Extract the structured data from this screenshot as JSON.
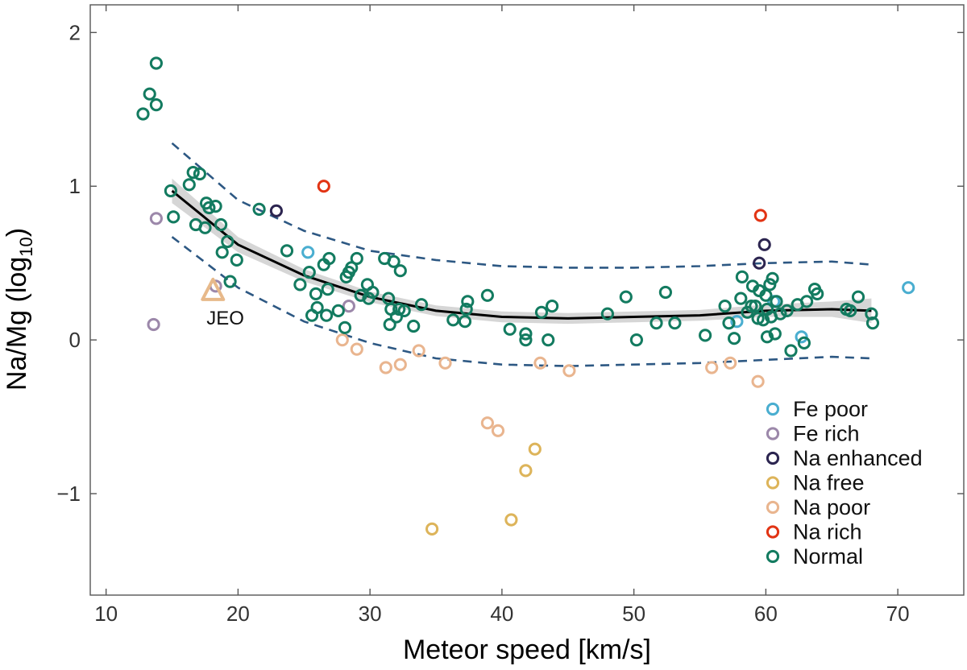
{
  "chart_data": {
    "type": "scatter",
    "title": "",
    "xlabel": "Meteor speed [km/s]",
    "ylabel_main": "Na/Mg (log",
    "ylabel_sub": "10",
    "ylabel_close": ")",
    "xlim": [
      8.8,
      75
    ],
    "ylim": [
      -1.66,
      2.18
    ],
    "xticks": [
      10,
      20,
      30,
      40,
      50,
      60,
      70
    ],
    "yticks": [
      2,
      1,
      0,
      -1
    ],
    "xtick_labels": [
      "10",
      "20",
      "30",
      "40",
      "50",
      "60",
      "70"
    ],
    "ytick_labels": [
      "2",
      "1",
      "0",
      "−1"
    ],
    "grid": false,
    "legend_position": "bottom-right",
    "colors": {
      "Fe poor": "#4aaed0",
      "Fe rich": "#9c88aa",
      "Na enhanced": "#2c2550",
      "Na free": "#ddb45a",
      "Na poor": "#e9b58f",
      "Na rich": "#e23414",
      "Normal": "#137b60",
      "fit": "#000000",
      "band": "#cfcfcf",
      "dashed": "#2d5883",
      "jeo": "#e7b98a",
      "axis": "#555555"
    },
    "legend": [
      "Fe poor",
      "Fe rich",
      "Na enhanced",
      "Na free",
      "Na poor",
      "Na rich",
      "Normal"
    ],
    "series": [
      {
        "name": "Fe poor",
        "points": [
          [
            25.3,
            0.57
          ],
          [
            57.8,
            0.12
          ],
          [
            60.6,
            0.25
          ],
          [
            62.7,
            0.02
          ],
          [
            70.8,
            0.34
          ]
        ]
      },
      {
        "name": "Fe rich",
        "points": [
          [
            13.6,
            0.1
          ],
          [
            13.8,
            0.79
          ],
          [
            18.3,
            0.35
          ],
          [
            28.4,
            0.22
          ]
        ]
      },
      {
        "name": "Na enhanced",
        "points": [
          [
            22.9,
            0.84
          ],
          [
            59.5,
            0.5
          ],
          [
            59.9,
            0.62
          ]
        ]
      },
      {
        "name": "Na free",
        "points": [
          [
            34.7,
            -1.23
          ],
          [
            40.7,
            -1.17
          ],
          [
            41.8,
            -0.85
          ],
          [
            42.5,
            -0.71
          ]
        ]
      },
      {
        "name": "Na poor",
        "points": [
          [
            27.9,
            0.0
          ],
          [
            29.0,
            -0.06
          ],
          [
            31.2,
            -0.18
          ],
          [
            32.3,
            -0.16
          ],
          [
            33.7,
            -0.07
          ],
          [
            35.7,
            -0.15
          ],
          [
            38.9,
            -0.54
          ],
          [
            39.7,
            -0.59
          ],
          [
            42.9,
            -0.15
          ],
          [
            45.1,
            -0.2
          ],
          [
            55.9,
            -0.18
          ],
          [
            57.3,
            -0.15
          ],
          [
            59.4,
            -0.27
          ]
        ]
      },
      {
        "name": "Na rich",
        "points": [
          [
            26.5,
            1.0
          ],
          [
            59.6,
            0.81
          ]
        ]
      },
      {
        "name": "Normal",
        "points": [
          [
            13.8,
            1.8
          ],
          [
            12.8,
            1.47
          ],
          [
            13.3,
            1.6
          ],
          [
            13.8,
            1.53
          ],
          [
            14.9,
            0.97
          ],
          [
            15.1,
            0.8
          ],
          [
            16.3,
            1.01
          ],
          [
            16.6,
            1.09
          ],
          [
            17.1,
            1.08
          ],
          [
            16.8,
            0.75
          ],
          [
            17.5,
            0.73
          ],
          [
            17.6,
            0.89
          ],
          [
            17.8,
            0.86
          ],
          [
            18.3,
            0.87
          ],
          [
            18.7,
            0.75
          ],
          [
            18.8,
            0.57
          ],
          [
            19.2,
            0.64
          ],
          [
            19.4,
            0.38
          ],
          [
            19.9,
            0.52
          ],
          [
            21.6,
            0.85
          ],
          [
            23.7,
            0.58
          ],
          [
            24.7,
            0.36
          ],
          [
            25.4,
            0.44
          ],
          [
            25.6,
            0.16
          ],
          [
            25.9,
            0.3
          ],
          [
            26.0,
            0.21
          ],
          [
            26.5,
            0.49
          ],
          [
            26.7,
            0.16
          ],
          [
            26.8,
            0.33
          ],
          [
            26.9,
            0.53
          ],
          [
            27.6,
            0.19
          ],
          [
            28.1,
            0.08
          ],
          [
            28.2,
            0.41
          ],
          [
            28.4,
            0.44
          ],
          [
            28.6,
            0.47
          ],
          [
            29.0,
            0.53
          ],
          [
            29.3,
            0.29
          ],
          [
            29.8,
            0.36
          ],
          [
            29.9,
            0.27
          ],
          [
            30.2,
            0.31
          ],
          [
            31.1,
            0.53
          ],
          [
            31.4,
            0.27
          ],
          [
            31.5,
            0.1
          ],
          [
            31.6,
            0.2
          ],
          [
            31.8,
            0.51
          ],
          [
            32.0,
            0.15
          ],
          [
            32.2,
            0.2
          ],
          [
            32.3,
            0.45
          ],
          [
            32.6,
            0.19
          ],
          [
            33.3,
            0.09
          ],
          [
            33.9,
            0.23
          ],
          [
            36.3,
            0.13
          ],
          [
            37.2,
            0.12
          ],
          [
            37.3,
            0.2
          ],
          [
            37.4,
            0.25
          ],
          [
            38.9,
            0.29
          ],
          [
            40.6,
            0.07
          ],
          [
            41.8,
            0.0
          ],
          [
            41.8,
            0.04
          ],
          [
            43.0,
            0.18
          ],
          [
            43.5,
            0.0
          ],
          [
            43.8,
            0.22
          ],
          [
            48.0,
            0.17
          ],
          [
            49.4,
            0.28
          ],
          [
            50.2,
            0.0
          ],
          [
            51.7,
            0.11
          ],
          [
            52.4,
            0.31
          ],
          [
            53.1,
            0.11
          ],
          [
            55.4,
            0.03
          ],
          [
            56.9,
            0.22
          ],
          [
            57.2,
            0.11
          ],
          [
            57.6,
            0.01
          ],
          [
            58.1,
            0.27
          ],
          [
            58.2,
            0.41
          ],
          [
            58.6,
            0.18
          ],
          [
            58.9,
            0.22
          ],
          [
            59.0,
            0.35
          ],
          [
            59.2,
            0.22
          ],
          [
            59.4,
            0.14
          ],
          [
            59.5,
            0.32
          ],
          [
            59.8,
            0.13
          ],
          [
            60.0,
            0.29
          ],
          [
            60.1,
            0.2
          ],
          [
            60.1,
            0.02
          ],
          [
            60.3,
            0.36
          ],
          [
            60.4,
            0.15
          ],
          [
            60.5,
            0.4
          ],
          [
            60.7,
            0.04
          ],
          [
            60.8,
            0.25
          ],
          [
            61.1,
            0.17
          ],
          [
            61.6,
            0.19
          ],
          [
            61.9,
            -0.07
          ],
          [
            62.4,
            0.23
          ],
          [
            62.9,
            -0.02
          ],
          [
            63.1,
            0.25
          ],
          [
            63.7,
            0.33
          ],
          [
            63.9,
            0.3
          ],
          [
            66.1,
            0.2
          ],
          [
            66.4,
            0.19
          ],
          [
            67.0,
            0.28
          ],
          [
            68.0,
            0.17
          ],
          [
            68.1,
            0.11
          ]
        ]
      }
    ],
    "fit_line": {
      "x": [
        15,
        20,
        25,
        30,
        35,
        40,
        45,
        50,
        55,
        60,
        65,
        68
      ],
      "y": [
        0.97,
        0.62,
        0.42,
        0.28,
        0.19,
        0.15,
        0.14,
        0.15,
        0.16,
        0.19,
        0.2,
        0.19
      ]
    },
    "band_halfwidth": [
      0.08,
      0.05,
      0.04,
      0.035,
      0.035,
      0.035,
      0.035,
      0.035,
      0.035,
      0.04,
      0.05,
      0.08
    ],
    "upper_pi": {
      "x": [
        15,
        20,
        25,
        30,
        35,
        40,
        45,
        50,
        55,
        60,
        65,
        68
      ],
      "y": [
        1.28,
        0.91,
        0.71,
        0.58,
        0.52,
        0.48,
        0.47,
        0.47,
        0.48,
        0.5,
        0.51,
        0.49
      ]
    },
    "lower_pi": {
      "x": [
        15,
        20,
        25,
        30,
        35,
        40,
        45,
        50,
        55,
        60,
        65,
        68
      ],
      "y": [
        0.67,
        0.34,
        0.12,
        -0.02,
        -0.12,
        -0.16,
        -0.17,
        -0.16,
        -0.15,
        -0.13,
        -0.11,
        -0.12
      ]
    },
    "annotations": [
      {
        "text": "JEO",
        "marker": "triangle",
        "x": 18.1,
        "y": 0.3
      }
    ]
  }
}
